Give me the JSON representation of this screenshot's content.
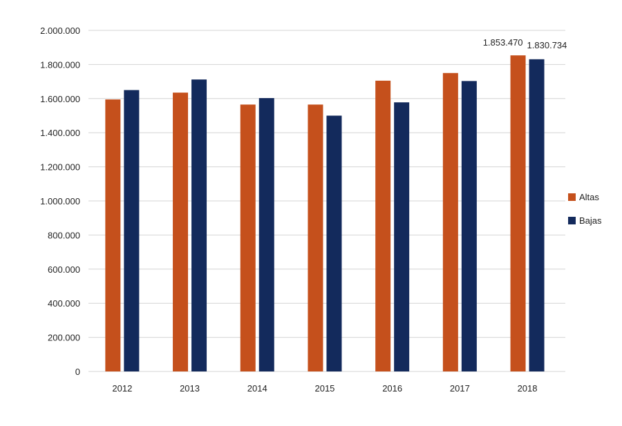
{
  "chart_data": {
    "type": "bar",
    "title": "",
    "xlabel": "",
    "ylabel": "",
    "categories": [
      "2012",
      "2013",
      "2014",
      "2015",
      "2016",
      "2017",
      "2018"
    ],
    "series": [
      {
        "name": "Altas",
        "color": "#c5501c",
        "values": [
          1595000,
          1635000,
          1565000,
          1565000,
          1705000,
          1750000,
          1853470
        ]
      },
      {
        "name": "Bajas",
        "color": "#132a5c",
        "values": [
          1650000,
          1712000,
          1603000,
          1500000,
          1578000,
          1703000,
          1830734
        ]
      }
    ],
    "ylim": [
      0,
      2000000
    ],
    "yticks": [
      0,
      200000,
      400000,
      600000,
      800000,
      1000000,
      1200000,
      1400000,
      1600000,
      1800000,
      2000000
    ],
    "ytick_labels": [
      "0",
      "200.000",
      "400.000",
      "600.000",
      "800.000",
      "1.000.000",
      "1.200.000",
      "1.400.000",
      "1.600.000",
      "1.800.000",
      "2.000.000"
    ],
    "data_labels": [
      {
        "series": "Altas",
        "category": "2018",
        "text": "1.853.470"
      },
      {
        "series": "Bajas",
        "category": "2018",
        "text": "1.830.734"
      }
    ],
    "grid": true,
    "legend_position": "right"
  }
}
